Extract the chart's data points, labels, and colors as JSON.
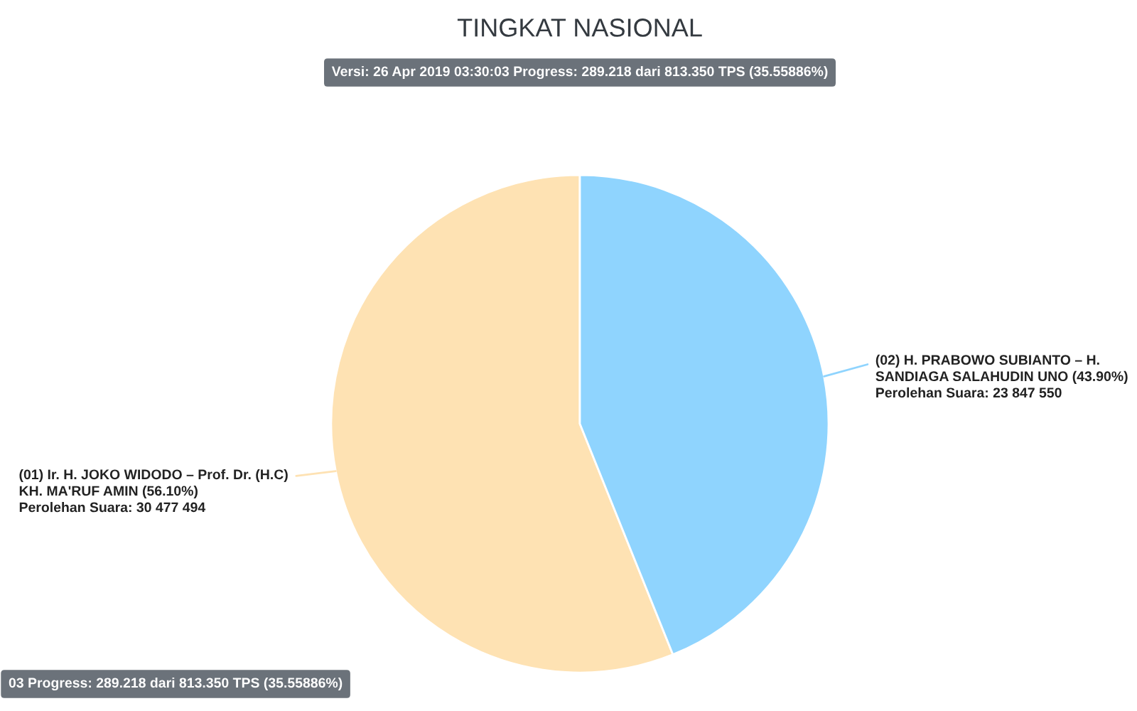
{
  "chart_data": {
    "type": "pie",
    "title": "TINGKAT NASIONAL",
    "subtitle": "Versi: 26 Apr 2019 03:30:03 Progress: 289.218 dari 813.350 TPS (35.55886%)",
    "categories": [
      "(01) Ir. H. JOKO WIDODO – Prof. Dr. (H.C) KH. MA'RUF AMIN",
      "(02) H. PRABOWO SUBIANTO – H. SANDIAGA SALAHUDIN UNO"
    ],
    "values": [
      30477494,
      23847550
    ],
    "colors": [
      "#fee2b3",
      "#8fd4fe"
    ],
    "value_labels": [
      "(56.10%)\nPerolehan Suara: 30 477 494",
      "(43.90%)\nPerolehan Suara: 23 847 550"
    ],
    "annotations": [
      "03 Progress: 289.218 dari 813.350 TPS (35.55886%)"
    ]
  }
}
